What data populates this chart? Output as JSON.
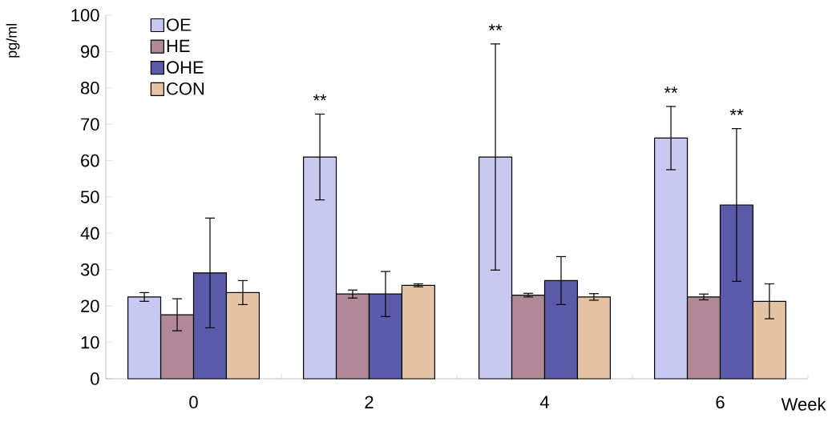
{
  "chart_data": {
    "type": "bar",
    "xlabel": "Week",
    "ylabel": "pg/ml",
    "categories": [
      "0",
      "2",
      "4",
      "6"
    ],
    "ylim": [
      0,
      100
    ],
    "yticks": [
      0,
      10,
      20,
      30,
      40,
      50,
      60,
      70,
      80,
      90,
      100
    ],
    "legend": "top left",
    "grid": false,
    "series": [
      {
        "name": "OE",
        "color": "#c8c8f0",
        "values": [
          22.5,
          61.0,
          61.0,
          66.2
        ],
        "errors": [
          1.2,
          11.8,
          31.1,
          8.7
        ]
      },
      {
        "name": "HE",
        "color": "#b08898",
        "values": [
          17.6,
          23.3,
          23.0,
          22.5
        ],
        "errors": [
          4.4,
          1.1,
          0.5,
          0.8
        ]
      },
      {
        "name": "OHE",
        "color": "#5a5aa8",
        "values": [
          29.1,
          23.3,
          27.0,
          47.8
        ],
        "errors": [
          15.1,
          6.2,
          6.6,
          21.0
        ]
      },
      {
        "name": "CON",
        "color": "#e4c4a4",
        "values": [
          23.7,
          25.7,
          22.5,
          21.3
        ],
        "errors": [
          3.3,
          0.4,
          0.9,
          4.8
        ]
      }
    ],
    "annotations": [
      "**",
      "**",
      "**",
      "**"
    ]
  }
}
